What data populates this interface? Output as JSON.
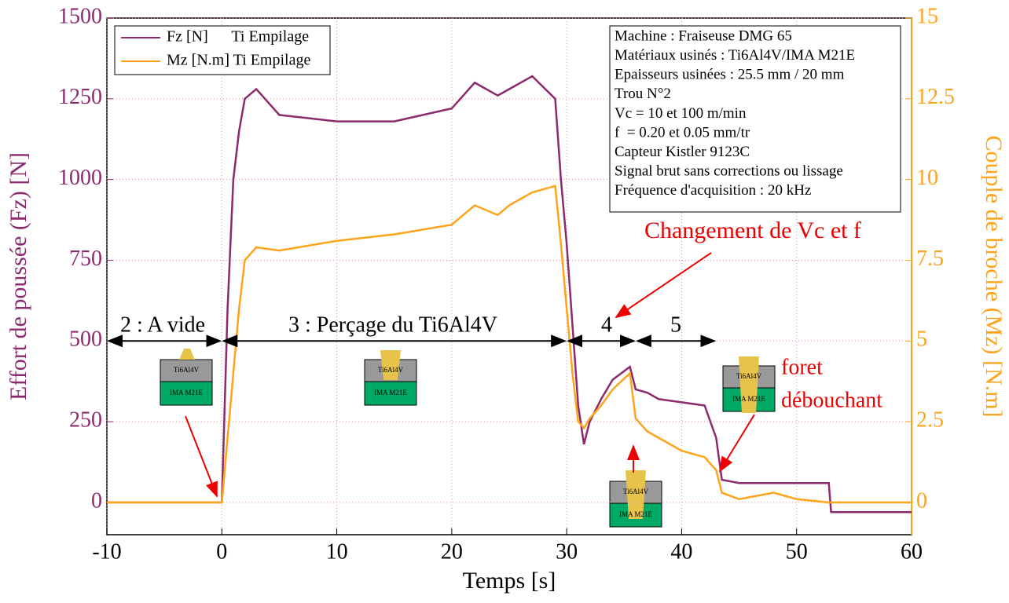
{
  "chart_data": {
    "type": "line",
    "xlabel": "Temps [s]",
    "ylabel": "Effort de poussée (Fz) [N]",
    "y2label": "Couple de broche (Mz) [N.m]",
    "x": [
      -10,
      0,
      0.5,
      1,
      1.5,
      2,
      3,
      5,
      10,
      15,
      20,
      22,
      24,
      25,
      27,
      29,
      29.5,
      30,
      30.5,
      31,
      31.5,
      32,
      33,
      34,
      35.5,
      36,
      37,
      38,
      40,
      42,
      43,
      43.5,
      45,
      48,
      50,
      52.8,
      53,
      60
    ],
    "series": [
      {
        "name": "Fz [N]      Ti Empilage",
        "color": "#8c2a6e",
        "values": [
          0,
          0,
          600,
          1000,
          1150,
          1250,
          1280,
          1200,
          1180,
          1180,
          1220,
          1300,
          1260,
          1280,
          1320,
          1250,
          1000,
          800,
          550,
          300,
          180,
          250,
          320,
          380,
          420,
          350,
          340,
          320,
          310,
          300,
          200,
          70,
          60,
          60,
          60,
          60,
          -30,
          -30
        ]
      },
      {
        "name": "Mz [N.m] Ti Empilage",
        "color": "#ffa31a",
        "axis": "y2",
        "values": [
          0,
          0,
          2,
          4,
          6,
          7.5,
          7.9,
          7.8,
          8.1,
          8.3,
          8.6,
          9.2,
          8.9,
          9.2,
          9.6,
          9.8,
          8,
          6,
          4,
          2.5,
          2.3,
          2.6,
          3,
          3.5,
          4,
          2.6,
          2.2,
          2,
          1.6,
          1.4,
          1.0,
          0.3,
          0.1,
          0.3,
          0.1,
          0,
          0,
          0
        ]
      }
    ],
    "xlim": [
      -10,
      60
    ],
    "xticks": [
      -10,
      0,
      10,
      20,
      30,
      40,
      50,
      60
    ],
    "ylim": [
      -100,
      1500
    ],
    "yticks": [
      0,
      250,
      500,
      750,
      1000,
      1250,
      1500
    ],
    "y2lim": [
      -1,
      15
    ],
    "y2ticks": [
      0,
      2.5,
      5,
      7.5,
      10,
      12.5,
      15
    ],
    "grid": true,
    "legend": "upper left",
    "info_box": [
      "Machine : Fraiseuse DMG 65",
      "Matériaux usinés : Ti6Al4V/IMA M21E",
      "Epaisseurs usinées : 25.5 mm / 20 mm",
      "Trou N°2",
      "Vc = 10 et 100 m/min",
      "f  = 0.20 et 0.05 mm/tr",
      "Capteur Kistler 9123C",
      "Signal brut sans corrections ou lissage",
      "Fréquence d'acquisition : 20 kHz"
    ],
    "phases": [
      "2 : A vide",
      "3 : Perçage du Ti6Al4V",
      "4",
      "5"
    ],
    "annotations": [
      "Changement de Vc et f",
      "foret",
      "débouchant"
    ],
    "icon_labels": [
      "Ti6Al4V",
      "IMA M21E"
    ]
  }
}
